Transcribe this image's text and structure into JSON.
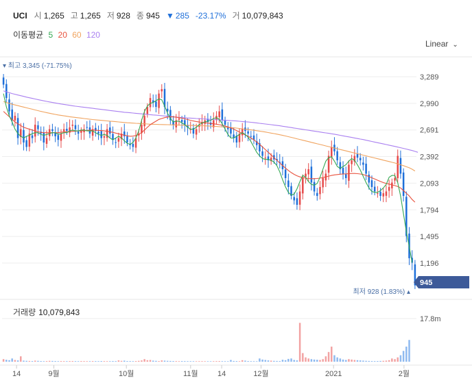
{
  "header": {
    "ticker": "UCI",
    "open_label": "시",
    "open": "1,265",
    "high_label": "고",
    "high": "1,265",
    "low_label": "저",
    "low": "928",
    "close_label": "종",
    "close": "945",
    "change_arrow": "▼",
    "change": "285",
    "change_pct": "-23.17%",
    "volume_label": "거",
    "volume": "10,079,843"
  },
  "ma": {
    "label": "이동평균",
    "items": [
      {
        "period": "5",
        "color": "#33a852"
      },
      {
        "period": "20",
        "color": "#e8513d"
      },
      {
        "period": "60",
        "color": "#f0a35e"
      },
      {
        "period": "120",
        "color": "#a97ff0"
      }
    ]
  },
  "scale": {
    "label": "Linear",
    "icon": "chevron-down-icon"
  },
  "colors": {
    "up": "#e64a4a",
    "down": "#1e6fd9",
    "vol_up": "#f2a3a3",
    "vol_down": "#8fbaf0",
    "grid": "#eeeeee"
  },
  "chart_data": {
    "type": "candlestick",
    "y_ticks": [
      "3,289",
      "2,990",
      "2,691",
      "2,392",
      "2,093",
      "1,794",
      "1,495",
      "1,196"
    ],
    "ylim": [
      880,
      3420
    ],
    "x_labels": [
      "14",
      "9월",
      "10월",
      "11월",
      "14",
      "12월",
      "2021",
      "2월"
    ],
    "high_annotation": "최고 3,345 (-71.75%)",
    "low_annotation": "최저 928 (1.83%)",
    "current_price": "945",
    "close_series": [
      3200,
      3050,
      2900,
      2800,
      2850,
      2600,
      2700,
      2550,
      2500,
      2650,
      2600,
      2750,
      2700,
      2650,
      2550,
      2600,
      2700,
      2680,
      2620,
      2580,
      2650,
      2700,
      2680,
      2720,
      2750,
      2700,
      2650,
      2680,
      2700,
      2720,
      2650,
      2700,
      2680,
      2650,
      2600,
      2620,
      2700,
      2650,
      2580,
      2550,
      2600,
      2650,
      2620,
      2550,
      2520,
      2500,
      2600,
      2650,
      2750,
      2850,
      2950,
      3050,
      3000,
      2950,
      3100,
      3150,
      2950,
      2900,
      2800,
      2750,
      2800,
      2820,
      2780,
      2750,
      2720,
      2700,
      2650,
      2700,
      2750,
      2780,
      2800,
      2780,
      2750,
      2800,
      2850,
      2900,
      2800,
      2750,
      2700,
      2650,
      2600,
      2550,
      2650,
      2700,
      2680,
      2650,
      2620,
      2580,
      2520,
      2450,
      2400,
      2380,
      2350,
      2380,
      2360,
      2350,
      2320,
      2250,
      2150,
      2050,
      1950,
      1900,
      1850,
      2000,
      2150,
      2200,
      2250,
      2100,
      2000,
      1950,
      2050,
      2150,
      2200,
      2400,
      2500,
      2450,
      2350,
      2250,
      2200,
      2150,
      2300,
      2350,
      2400,
      2380,
      2350,
      2300,
      2200,
      2100,
      2050,
      2000,
      1980,
      1950,
      1980,
      2000,
      2050,
      2100,
      2150,
      2400,
      2200,
      1950,
      1500,
      1250,
      1200,
      945
    ],
    "ma5": [
      3100,
      2950,
      2850,
      2780,
      2700,
      2650,
      2620,
      2600,
      2620,
      2630,
      2650,
      2660,
      2660,
      2640,
      2630,
      2640,
      2650,
      2660,
      2660,
      2640,
      2650,
      2660,
      2660,
      2680,
      2690,
      2680,
      2680,
      2690,
      2690,
      2680,
      2680,
      2680,
      2660,
      2640,
      2630,
      2640,
      2630,
      2600,
      2580,
      2600,
      2620,
      2600,
      2570,
      2540,
      2530,
      2550,
      2600,
      2680,
      2800,
      2900,
      2960,
      2990,
      3000,
      3020,
      3040,
      3030,
      2960,
      2880,
      2820,
      2780,
      2790,
      2790,
      2770,
      2750,
      2720,
      2700,
      2700,
      2720,
      2750,
      2770,
      2780,
      2790,
      2800,
      2820,
      2830,
      2810,
      2760,
      2700,
      2640,
      2600,
      2600,
      2620,
      2640,
      2660,
      2640,
      2610,
      2560,
      2500,
      2440,
      2400,
      2370,
      2360,
      2360,
      2350,
      2330,
      2290,
      2220,
      2130,
      2050,
      1990,
      1960,
      1970,
      2030,
      2110,
      2180,
      2160,
      2110,
      2080,
      2070,
      2090,
      2160,
      2250,
      2340,
      2380,
      2390,
      2340,
      2280,
      2260,
      2280,
      2300,
      2340,
      2370,
      2350,
      2300,
      2240,
      2170,
      2100,
      2040,
      2000,
      1990,
      1990,
      2010,
      2040,
      2080,
      2160,
      2180,
      2180,
      2100,
      1950,
      1750,
      1550,
      1380,
      1200
    ],
    "ma20": [
      2900,
      2870,
      2840,
      2810,
      2780,
      2760,
      2740,
      2720,
      2710,
      2700,
      2690,
      2680,
      2670,
      2665,
      2660,
      2660,
      2660,
      2660,
      2660,
      2660,
      2665,
      2670,
      2670,
      2672,
      2675,
      2678,
      2680,
      2682,
      2684,
      2686,
      2688,
      2690,
      2688,
      2686,
      2684,
      2680,
      2676,
      2670,
      2664,
      2656,
      2648,
      2640,
      2632,
      2626,
      2620,
      2622,
      2628,
      2640,
      2660,
      2690,
      2720,
      2750,
      2770,
      2790,
      2810,
      2820,
      2830,
      2836,
      2840,
      2838,
      2834,
      2830,
      2824,
      2816,
      2808,
      2800,
      2792,
      2786,
      2780,
      2776,
      2772,
      2768,
      2764,
      2760,
      2756,
      2750,
      2744,
      2736,
      2726,
      2714,
      2700,
      2684,
      2668,
      2652,
      2636,
      2620,
      2600,
      2580,
      2556,
      2530,
      2500,
      2470,
      2440,
      2410,
      2380,
      2350,
      2320,
      2290,
      2262,
      2236,
      2212,
      2192,
      2176,
      2164,
      2156,
      2150,
      2146,
      2144,
      2144,
      2146,
      2150,
      2156,
      2164,
      2172,
      2180,
      2186,
      2190,
      2194,
      2196,
      2198,
      2200,
      2202,
      2202,
      2200,
      2196,
      2190,
      2180,
      2168,
      2154,
      2140,
      2126,
      2112,
      2100,
      2090,
      2082,
      2074,
      2066,
      2056,
      2040,
      2010,
      1980,
      1950,
      1910,
      1880
    ],
    "ma60": [
      3010,
      3000,
      2990,
      2980,
      2972,
      2964,
      2956,
      2948,
      2940,
      2932,
      2924,
      2916,
      2908,
      2900,
      2893,
      2886,
      2879,
      2872,
      2866,
      2860,
      2855,
      2850,
      2845,
      2840,
      2836,
      2832,
      2828,
      2824,
      2820,
      2816,
      2812,
      2808,
      2805,
      2802,
      2799,
      2796,
      2793,
      2790,
      2787,
      2784,
      2781,
      2778,
      2775,
      2772,
      2770,
      2768,
      2766,
      2764,
      2762,
      2760,
      2758,
      2756,
      2755,
      2754,
      2753,
      2752,
      2751,
      2750,
      2749,
      2748,
      2747,
      2746,
      2745,
      2744,
      2743,
      2742,
      2741,
      2740,
      2739,
      2738,
      2737,
      2736,
      2734,
      2732,
      2730,
      2728,
      2726,
      2724,
      2721,
      2718,
      2715,
      2712,
      2708,
      2704,
      2700,
      2696,
      2692,
      2688,
      2683,
      2678,
      2673,
      2668,
      2662,
      2656,
      2650,
      2644,
      2637,
      2630,
      2623,
      2616,
      2608,
      2600,
      2592,
      2584,
      2576,
      2568,
      2560,
      2552,
      2544,
      2536,
      2528,
      2520,
      2512,
      2504,
      2496,
      2488,
      2480,
      2472,
      2464,
      2456,
      2448,
      2440,
      2432,
      2424,
      2416,
      2408,
      2400,
      2392,
      2384,
      2376,
      2368,
      2360,
      2352,
      2344,
      2336,
      2328,
      2320,
      2310,
      2300,
      2290,
      2278,
      2266,
      2250,
      2230
    ],
    "ma120": [
      3130,
      3120,
      3110,
      3100,
      3092,
      3084,
      3076,
      3068,
      3060,
      3053,
      3046,
      3039,
      3032,
      3025,
      3018,
      3012,
      3006,
      3000,
      2994,
      2988,
      2983,
      2978,
      2973,
      2968,
      2963,
      2958,
      2954,
      2950,
      2946,
      2942,
      2938,
      2934,
      2930,
      2926,
      2922,
      2918,
      2914,
      2910,
      2906,
      2902,
      2898,
      2894,
      2890,
      2887,
      2884,
      2881,
      2878,
      2875,
      2872,
      2869,
      2866,
      2863,
      2860,
      2857,
      2854,
      2851,
      2848,
      2845,
      2842,
      2839,
      2836,
      2833,
      2830,
      2828,
      2826,
      2824,
      2822,
      2820,
      2818,
      2816,
      2814,
      2812,
      2810,
      2808,
      2806,
      2804,
      2802,
      2800,
      2798,
      2796,
      2794,
      2792,
      2789,
      2786,
      2783,
      2780,
      2777,
      2774,
      2770,
      2766,
      2762,
      2758,
      2754,
      2750,
      2746,
      2742,
      2738,
      2733,
      2728,
      2723,
      2718,
      2713,
      2708,
      2703,
      2698,
      2693,
      2688,
      2683,
      2678,
      2673,
      2668,
      2663,
      2658,
      2653,
      2648,
      2643,
      2637,
      2631,
      2625,
      2619,
      2613,
      2607,
      2601,
      2595,
      2589,
      2583,
      2576,
      2569,
      2562,
      2555,
      2548,
      2541,
      2534,
      2527,
      2520,
      2513,
      2506,
      2499,
      2492,
      2484,
      2476,
      2468,
      2460,
      2450,
      2440
    ],
    "volume_label": "거래량",
    "volume_value": "10,079,843",
    "volume_tick": "17.8m",
    "volume_ylim": [
      0,
      20000000
    ],
    "volume": [
      1200000,
      900000,
      700000,
      1500000,
      800000,
      600000,
      2500000,
      500000,
      400000,
      350000,
      300000,
      500000,
      400000,
      300000,
      250000,
      300000,
      400000,
      350000,
      300000,
      250000,
      300000,
      280000,
      260000,
      300000,
      320000,
      280000,
      250000,
      300000,
      280000,
      260000,
      250000,
      300000,
      280000,
      260000,
      300000,
      280000,
      260000,
      250000,
      300000,
      280000,
      600000,
      400000,
      500000,
      300000,
      280000,
      260000,
      300000,
      400000,
      600000,
      1200000,
      700000,
      800000,
      500000,
      400000,
      300000,
      600000,
      500000,
      400000,
      350000,
      300000,
      280000,
      260000,
      300000,
      280000,
      260000,
      250000,
      240000,
      230000,
      250000,
      260000,
      240000,
      230000,
      220000,
      250000,
      280000,
      300000,
      260000,
      240000,
      230000,
      800000,
      350000,
      300000,
      260000,
      700000,
      500000,
      300000,
      260000,
      240000,
      220000,
      1500000,
      1000000,
      800000,
      600000,
      500000,
      400000,
      350000,
      300000,
      900000,
      700000,
      1300000,
      1500000,
      800000,
      600000,
      18000000,
      4000000,
      2000000,
      1500000,
      1200000,
      1000000,
      900000,
      800000,
      1200000,
      2500000,
      4500000,
      7000000,
      3000000,
      2000000,
      1500000,
      1000000,
      800000,
      1200000,
      1000000,
      800000,
      700000,
      600000,
      500000,
      400000,
      350000,
      300000,
      280000,
      300000,
      350000,
      400000,
      500000,
      700000,
      1500000,
      1200000,
      2000000,
      3000000,
      5000000,
      7000000,
      10079843
    ]
  }
}
